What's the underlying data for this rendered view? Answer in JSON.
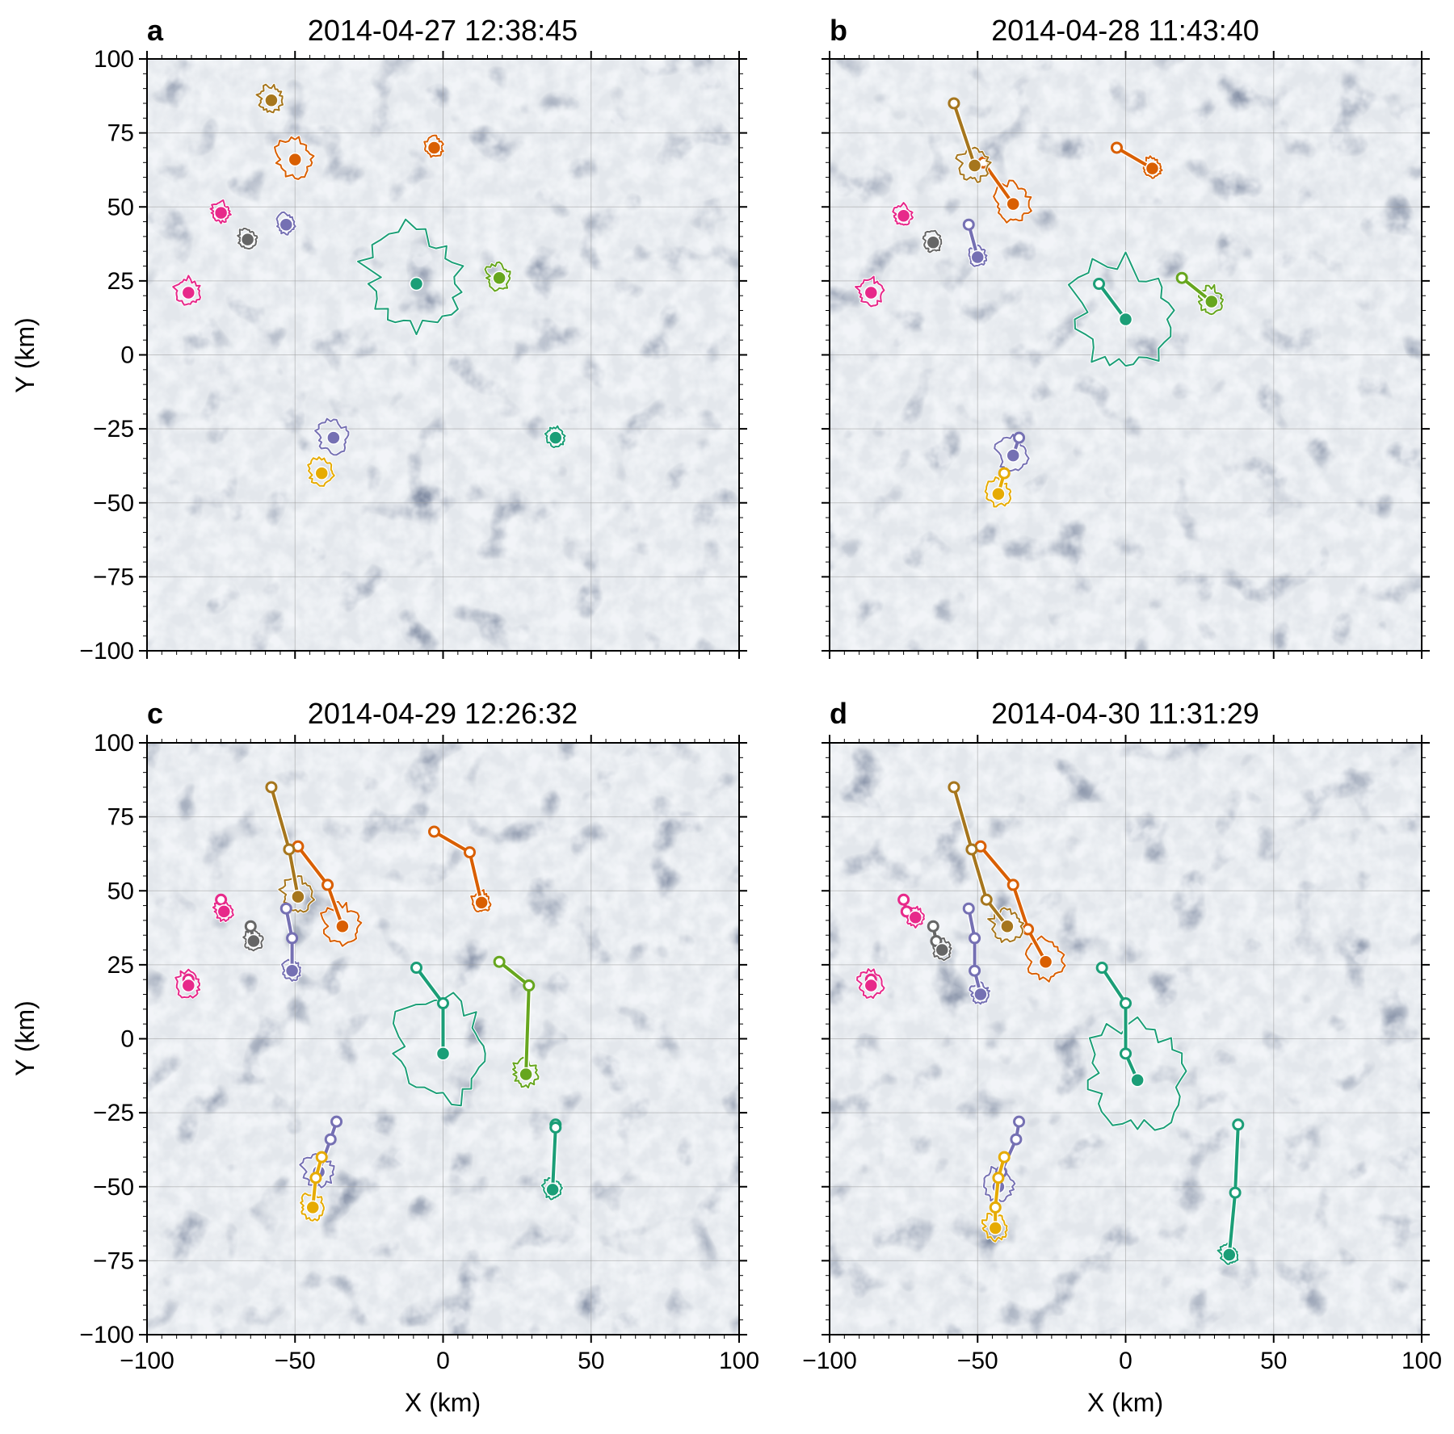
{
  "figure": {
    "xlabel": "X (km)",
    "ylabel": "Y (km)"
  },
  "colors": {
    "green": "#1b9e77",
    "orange": "#d95f02",
    "purple": "#7570b3",
    "magenta": "#e7298a",
    "lime": "#66a61e",
    "gold": "#e6ab02",
    "brown": "#a6761d",
    "gray": "#666666"
  },
  "chart_data": [
    {
      "type": "scatter",
      "panel": "a",
      "title": "2014-04-27 12:38:45",
      "xlim": [
        -100,
        100
      ],
      "ylim": [
        -100,
        100
      ],
      "xticks": [
        -100,
        -50,
        0,
        50,
        100
      ],
      "yticks": [
        -100,
        -75,
        -50,
        -25,
        0,
        25,
        50,
        75,
        100
      ],
      "background": "satellite sea-ice imagery",
      "tracks": [
        {
          "color": "green",
          "points": [
            [
              -9,
              24
            ]
          ],
          "floe_radius_km": 15
        },
        {
          "color": "orange",
          "points": [
            [
              -50,
              66
            ]
          ],
          "floe_radius_km": 6
        },
        {
          "color": "brown",
          "points": [
            [
              -58,
              86
            ]
          ],
          "floe_radius_km": 4
        },
        {
          "color": "orange",
          "points": [
            [
              -3,
              70
            ]
          ],
          "floe_radius_km": 3
        },
        {
          "color": "magenta",
          "points": [
            [
              -75,
              48
            ]
          ],
          "floe_radius_km": 3
        },
        {
          "color": "purple",
          "points": [
            [
              -53,
              44
            ]
          ],
          "floe_radius_km": 3
        },
        {
          "color": "gray",
          "points": [
            [
              -66,
              39
            ]
          ],
          "floe_radius_km": 3
        },
        {
          "color": "magenta",
          "points": [
            [
              -86,
              21
            ]
          ],
          "floe_radius_km": 4
        },
        {
          "color": "lime",
          "points": [
            [
              19,
              26
            ]
          ],
          "floe_radius_km": 4
        },
        {
          "color": "purple",
          "points": [
            [
              -37,
              -28
            ]
          ],
          "floe_radius_km": 5
        },
        {
          "color": "gold",
          "points": [
            [
              -41,
              -40
            ]
          ],
          "floe_radius_km": 4
        },
        {
          "color": "green",
          "points": [
            [
              38,
              -28
            ]
          ],
          "floe_radius_km": 3
        }
      ]
    },
    {
      "type": "scatter",
      "panel": "b",
      "title": "2014-04-28 11:43:40",
      "xlim": [
        -100,
        100
      ],
      "ylim": [
        -100,
        100
      ],
      "xticks": [
        -100,
        -50,
        0,
        50,
        100
      ],
      "yticks": [
        -100,
        -75,
        -50,
        -25,
        0,
        25,
        50,
        75,
        100
      ],
      "background": "satellite sea-ice imagery",
      "tracks": [
        {
          "color": "green",
          "points": [
            [
              -9,
              24
            ],
            [
              0,
              12
            ]
          ],
          "floe_radius_km": 16
        },
        {
          "color": "orange",
          "points": [
            [
              -48,
              65
            ],
            [
              -38,
              51
            ]
          ],
          "floe_radius_km": 6
        },
        {
          "color": "brown",
          "points": [
            [
              -58,
              85
            ],
            [
              -51,
              64
            ]
          ],
          "floe_radius_km": 5
        },
        {
          "color": "orange",
          "points": [
            [
              -3,
              70
            ],
            [
              9,
              63
            ]
          ],
          "floe_radius_km": 3
        },
        {
          "color": "magenta",
          "points": [
            [
              -75,
              47
            ]
          ],
          "floe_radius_km": 3
        },
        {
          "color": "purple",
          "points": [
            [
              -53,
              44
            ],
            [
              -50,
              33
            ]
          ],
          "floe_radius_km": 3
        },
        {
          "color": "gray",
          "points": [
            [
              -65,
              38
            ]
          ],
          "floe_radius_km": 3
        },
        {
          "color": "magenta",
          "points": [
            [
              -86,
              21
            ]
          ],
          "floe_radius_km": 4
        },
        {
          "color": "lime",
          "points": [
            [
              19,
              26
            ],
            [
              29,
              18
            ]
          ],
          "floe_radius_km": 4
        },
        {
          "color": "purple",
          "points": [
            [
              -36,
              -28
            ],
            [
              -38,
              -34
            ]
          ],
          "floe_radius_km": 5
        },
        {
          "color": "gold",
          "points": [
            [
              -41,
              -40
            ],
            [
              -43,
              -47
            ]
          ],
          "floe_radius_km": 4
        }
      ]
    },
    {
      "type": "scatter",
      "panel": "c",
      "title": "2014-04-29 12:26:32",
      "xlim": [
        -100,
        100
      ],
      "ylim": [
        -100,
        100
      ],
      "xticks": [
        -100,
        -50,
        0,
        50,
        100
      ],
      "yticks": [
        -100,
        -75,
        -50,
        -25,
        0,
        25,
        50,
        75,
        100
      ],
      "background": "satellite sea-ice imagery",
      "tracks": [
        {
          "color": "green",
          "points": [
            [
              -9,
              24
            ],
            [
              0,
              12
            ],
            [
              0,
              -5
            ]
          ],
          "floe_radius_km": 16
        },
        {
          "color": "orange",
          "points": [
            [
              -49,
              65
            ],
            [
              -39,
              52
            ],
            [
              -34,
              38
            ]
          ],
          "floe_radius_km": 6
        },
        {
          "color": "brown",
          "points": [
            [
              -58,
              85
            ],
            [
              -52,
              64
            ],
            [
              -49,
              48
            ]
          ],
          "floe_radius_km": 5
        },
        {
          "color": "orange",
          "points": [
            [
              -3,
              70
            ],
            [
              9,
              63
            ],
            [
              13,
              46
            ]
          ],
          "floe_radius_km": 3
        },
        {
          "color": "magenta",
          "points": [
            [
              -75,
              47
            ],
            [
              -74,
              43
            ]
          ],
          "floe_radius_km": 3
        },
        {
          "color": "purple",
          "points": [
            [
              -53,
              44
            ],
            [
              -51,
              34
            ],
            [
              -51,
              23
            ]
          ],
          "floe_radius_km": 3
        },
        {
          "color": "gray",
          "points": [
            [
              -65,
              38
            ],
            [
              -64,
              33
            ]
          ],
          "floe_radius_km": 3
        },
        {
          "color": "magenta",
          "points": [
            [
              -86,
              20
            ],
            [
              -86,
              18
            ]
          ],
          "floe_radius_km": 4
        },
        {
          "color": "lime",
          "points": [
            [
              19,
              26
            ],
            [
              29,
              18
            ],
            [
              28,
              -12
            ]
          ],
          "floe_radius_km": 4
        },
        {
          "color": "purple",
          "points": [
            [
              -36,
              -28
            ],
            [
              -38,
              -34
            ],
            [
              -42,
              -45
            ]
          ],
          "floe_radius_km": 5
        },
        {
          "color": "gold",
          "points": [
            [
              -41,
              -40
            ],
            [
              -43,
              -47
            ],
            [
              -44,
              -57
            ]
          ],
          "floe_radius_km": 4
        },
        {
          "color": "green",
          "points": [
            [
              38,
              -29
            ],
            [
              38,
              -30
            ],
            [
              37,
              -51
            ]
          ],
          "floe_radius_km": 3
        }
      ]
    },
    {
      "type": "scatter",
      "panel": "d",
      "title": "2014-04-30 11:31:29",
      "xlim": [
        -100,
        100
      ],
      "ylim": [
        -100,
        100
      ],
      "xticks": [
        -100,
        -50,
        0,
        50,
        100
      ],
      "yticks": [
        -100,
        -75,
        -50,
        -25,
        0,
        25,
        50,
        75,
        100
      ],
      "background": "satellite sea-ice imagery",
      "tracks": [
        {
          "color": "green",
          "points": [
            [
              -8,
              24
            ],
            [
              0,
              12
            ],
            [
              0,
              -5
            ],
            [
              4,
              -14
            ]
          ],
          "floe_radius_km": 16
        },
        {
          "color": "orange",
          "points": [
            [
              -49,
              65
            ],
            [
              -38,
              52
            ],
            [
              -33,
              37
            ],
            [
              -27,
              26
            ]
          ],
          "floe_radius_km": 6
        },
        {
          "color": "brown",
          "points": [
            [
              -58,
              85
            ],
            [
              -52,
              64
            ],
            [
              -47,
              47
            ],
            [
              -40,
              38
            ]
          ],
          "floe_radius_km": 5
        },
        {
          "color": "magenta",
          "points": [
            [
              -75,
              47
            ],
            [
              -74,
              43
            ],
            [
              -71,
              41
            ]
          ],
          "floe_radius_km": 3
        },
        {
          "color": "purple",
          "points": [
            [
              -53,
              44
            ],
            [
              -51,
              34
            ],
            [
              -51,
              23
            ],
            [
              -49,
              15
            ]
          ],
          "floe_radius_km": 3
        },
        {
          "color": "gray",
          "points": [
            [
              -65,
              38
            ],
            [
              -64,
              33
            ],
            [
              -62,
              30
            ]
          ],
          "floe_radius_km": 3
        },
        {
          "color": "magenta",
          "points": [
            [
              -86,
              20
            ],
            [
              -86,
              18
            ]
          ],
          "floe_radius_km": 4
        },
        {
          "color": "purple",
          "points": [
            [
              -36,
              -28
            ],
            [
              -37,
              -34
            ],
            [
              -42,
              -45
            ],
            [
              -43,
              -50
            ]
          ],
          "floe_radius_km": 5
        },
        {
          "color": "gold",
          "points": [
            [
              -41,
              -40
            ],
            [
              -43,
              -47
            ],
            [
              -44,
              -57
            ],
            [
              -44,
              -64
            ]
          ],
          "floe_radius_km": 4
        },
        {
          "color": "green",
          "points": [
            [
              38,
              -29
            ],
            [
              37,
              -52
            ],
            [
              35,
              -73
            ]
          ],
          "floe_radius_km": 3
        }
      ]
    }
  ]
}
